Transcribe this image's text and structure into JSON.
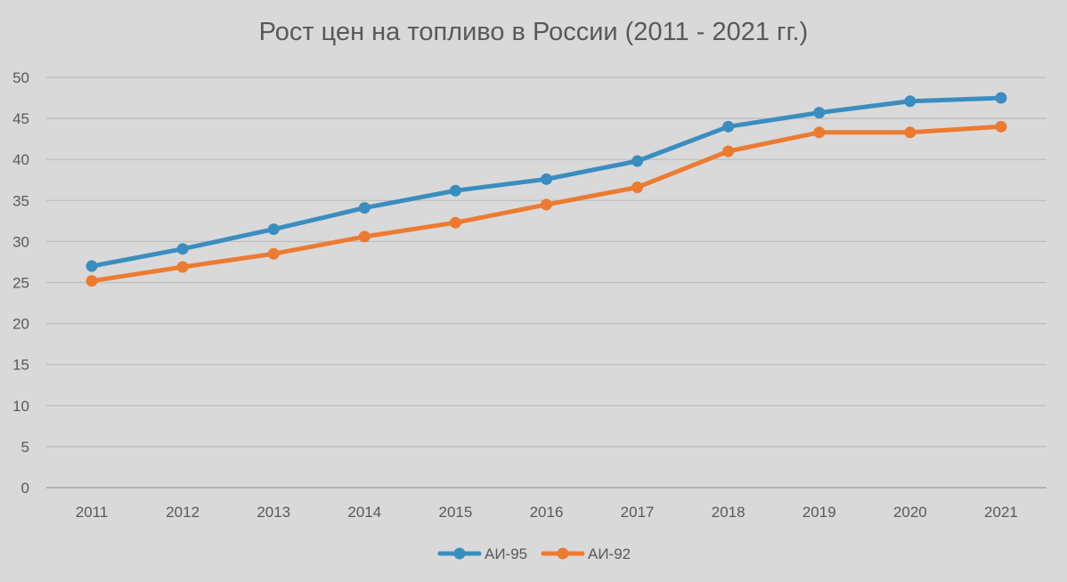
{
  "chart_data": {
    "type": "line",
    "title": "Рост цен на топливо в России (2011 - 2021 гг.)",
    "xlabel": "",
    "ylabel": "",
    "categories": [
      "2011",
      "2012",
      "2013",
      "2014",
      "2015",
      "2016",
      "2017",
      "2018",
      "2019",
      "2020",
      "2021"
    ],
    "ylim": [
      0,
      50
    ],
    "yticks": [
      "0",
      "5",
      "10",
      "15",
      "20",
      "25",
      "30",
      "35",
      "40",
      "45",
      "50"
    ],
    "grid": true,
    "legend_position": "bottom",
    "series": [
      {
        "name": "АИ-95",
        "color": "#3a8dbf",
        "values": [
          27.0,
          29.1,
          31.5,
          34.1,
          36.2,
          37.6,
          39.8,
          44.0,
          45.7,
          47.1,
          47.5
        ]
      },
      {
        "name": "АИ-92",
        "color": "#ec7b31",
        "values": [
          25.2,
          26.9,
          28.5,
          30.6,
          32.3,
          34.5,
          36.6,
          41.0,
          43.3,
          43.3,
          44.0
        ]
      }
    ]
  }
}
